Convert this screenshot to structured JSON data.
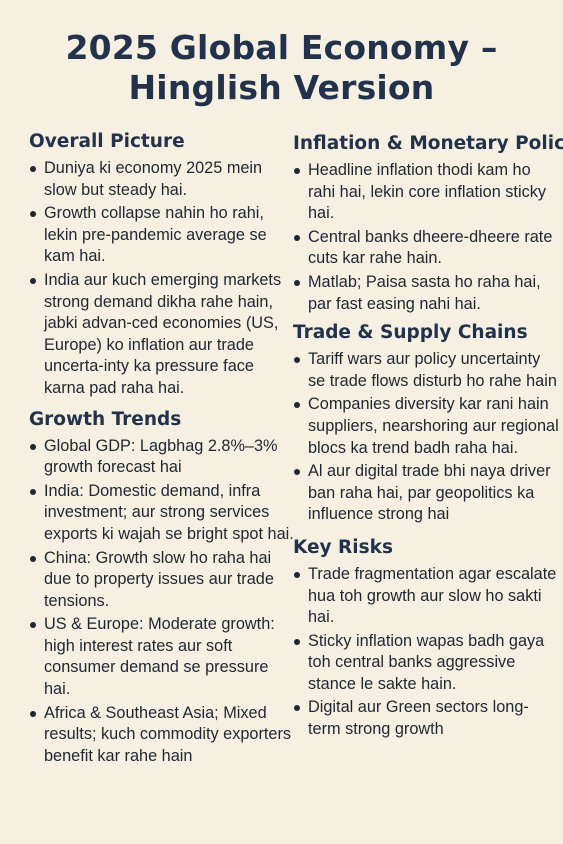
{
  "title_line1": "2025 Global Economy –",
  "title_line2": "Hinglish Version",
  "overall": {
    "heading": "Overall Picture",
    "items": [
      "Duniya ki economy 2025 mein slow but steady hai.",
      "Growth collapse nahin ho rahi, lekin pre-pandemic average se kam hai.",
      "India aur kuch emerging markets strong demand dikha rahe hain, jabki advan-ced economies (US, Europe) ko inflation aur trade uncerta-inty ka pressure face karna pad raha hai."
    ]
  },
  "growth": {
    "heading": "Growth Trends",
    "items": [
      "Global GDP: Lagbhag 2.8%–3% growth forecast hai",
      "India: Domestic demand, infra investment; aur strong services exports ki wajah se bright spot hai.",
      "China: Growth slow ho raha hai due to property issues aur trade tensions.",
      "US & Europe: Moderate growth: high interest rates aur soft consumer demand se pressure hai.",
      "Africa & Southeast Asia; Mixed results; kuch commodity exporters benefit kar rahe hain"
    ]
  },
  "inflation": {
    "heading": "Inflation & Monetary Policy",
    "items": [
      "Headline inflation thodi kam ho rahi hai, lekin core inflation sticky hai.",
      "Central banks dheere-dheere rate cuts kar rahe hain.",
      "Matlab; Paisa sasta ho raha hai, par fast easing nahi hai."
    ]
  },
  "trade": {
    "heading": "Trade & Supply Chains",
    "items": [
      "Tariff wars aur policy uncertainty se trade flows disturb ho rahe hain",
      "Companies diversity kar rani hain suppliers, nearshoring aur regional blocs ka trend badh raha hai.",
      "Al aur digital trade bhi naya driver ban raha hai, par geopolitics ka influence strong hai"
    ]
  },
  "risks": {
    "heading": "Key Risks",
    "items": [
      "Trade fragmentation agar escalate hua toh growth aur slow ho sakti hai.",
      "Sticky inflation wapas badh gaya toh central banks aggressive stance le sakte hain.",
      "Digital aur Green sectors long-term strong growth"
    ]
  }
}
